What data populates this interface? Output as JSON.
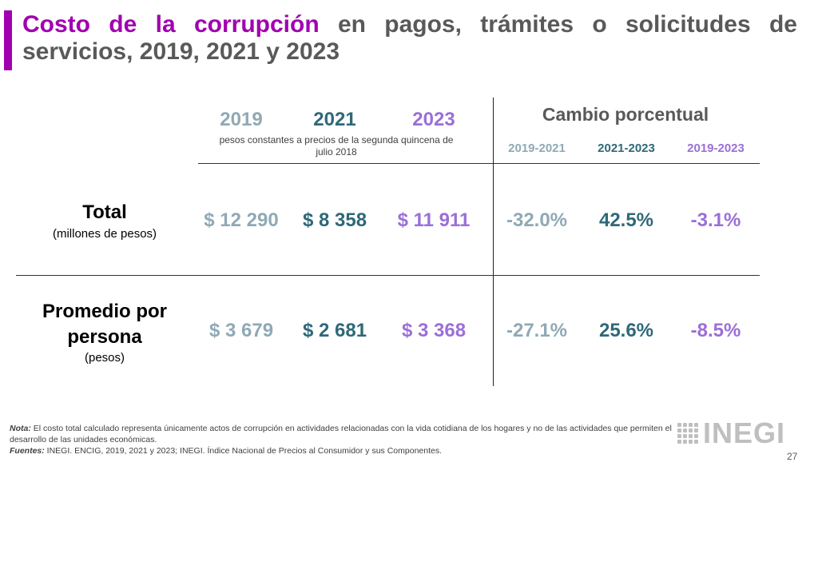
{
  "title": {
    "highlight": "Costo de la corrupción",
    "rest": " en pagos, trámites o solicitudes de servicios, 2019, 2021 y 2023"
  },
  "colors": {
    "accent": "#a100b0",
    "y2019": "#8fa9b6",
    "y2021": "#2f6878",
    "y2023": "#9b6fd8",
    "heading": "#595959"
  },
  "header": {
    "years": [
      "2019",
      "2021",
      "2023"
    ],
    "units": "pesos constantes a precios de la segunda quincena de julio 2018",
    "change_title": "Cambio porcentual",
    "periods": [
      "2019-2021",
      "2021-2023",
      "2019-2023"
    ]
  },
  "rows": [
    {
      "label": "Total",
      "sublabel": "(millones de pesos)",
      "values": [
        "$ 12 290",
        "$ 8 358",
        "$ 11 911"
      ],
      "changes": [
        "-32.0%",
        "42.5%",
        "-3.1%"
      ]
    },
    {
      "label": "Promedio por persona",
      "sublabel": "(pesos)",
      "values": [
        "$ 3 679",
        "$ 2 681",
        "$ 3 368"
      ],
      "changes": [
        "-27.1%",
        "25.6%",
        "-8.5%"
      ]
    }
  ],
  "footer": {
    "note_label": "Nota:",
    "note": " El costo total calculado representa únicamente actos de corrupción en actividades relacionadas con la vida cotidiana de los hogares y no de las actividades que permiten el desarrollo de las unidades económicas.",
    "sources_label": "Fuentes:",
    "sources": " INEGI. ENCIG, 2019, 2021 y 2023; INEGI. Índice Nacional de Precios al Consumidor y sus Componentes.",
    "logo": "INEGI",
    "page": "27"
  }
}
